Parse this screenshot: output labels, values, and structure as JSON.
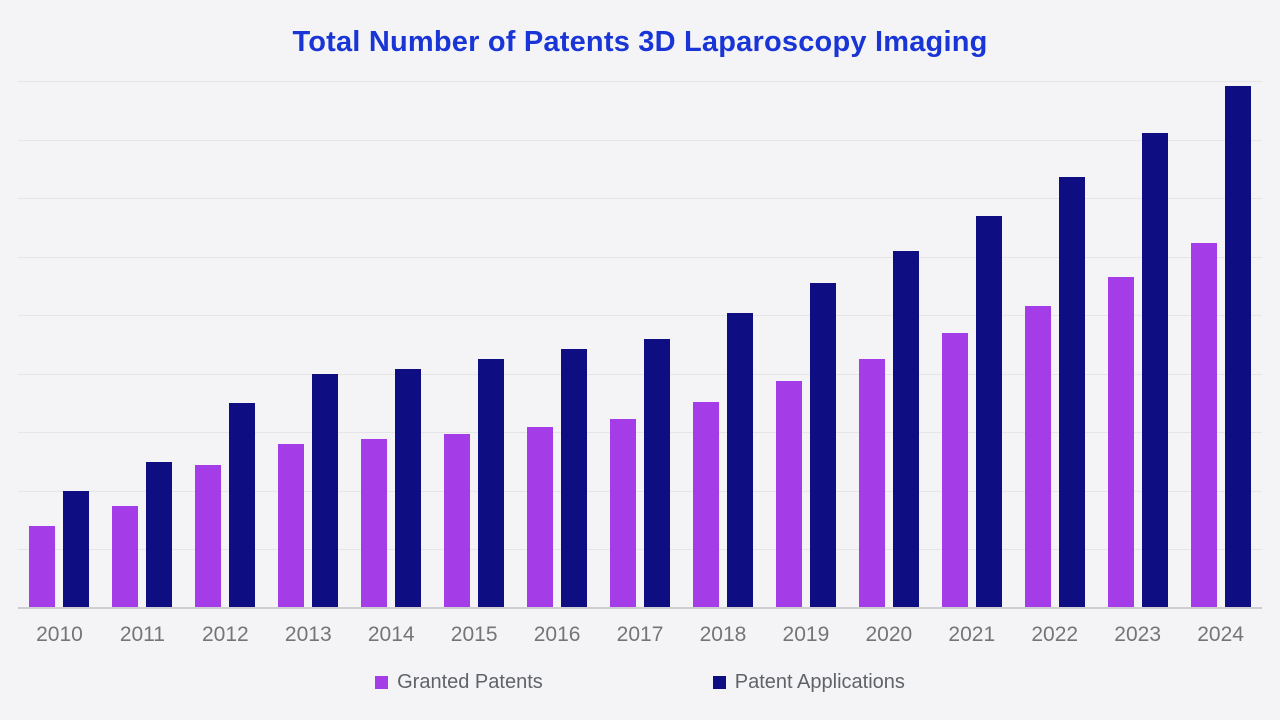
{
  "title": {
    "text": "Total Number of Patents 3D Laparoscopy Imaging",
    "color": "#1a35d6"
  },
  "chart_data": {
    "type": "bar",
    "title": "Total Number of Patents 3D Laparoscopy Imaging",
    "categories": [
      "2010",
      "2011",
      "2012",
      "2013",
      "2014",
      "2015",
      "2016",
      "2017",
      "2018",
      "2019",
      "2020",
      "2021",
      "2022",
      "2023",
      "2024"
    ],
    "series": [
      {
        "name": "Granted Patents",
        "color": "#a43ce8",
        "values": [
          140,
          175,
          245,
          280,
          288,
          298,
          309,
          322,
          352,
          388,
          426,
          469,
          515,
          566,
          624
        ]
      },
      {
        "name": "Patent Applications",
        "color": "#0e0e82",
        "values": [
          200,
          250,
          350,
          400,
          409,
          426,
          442,
          459,
          503,
          555,
          609,
          669,
          736,
          811,
          891
        ]
      }
    ],
    "xlabel": "",
    "ylabel": "",
    "ylim": [
      0,
      900
    ],
    "gridline_step": 100,
    "grid": true,
    "y_tick_labels_visible": false,
    "legend_position": "bottom",
    "value_note": "y-axis has no tick labels; values estimated from gridlines at step 100"
  },
  "styles": {
    "background": "#f4f4f6",
    "gridline_color": "#e5e5e8",
    "baseline_color": "#cdcdd2",
    "x_label_color": "#757575",
    "legend_text_color": "#5f6368"
  }
}
